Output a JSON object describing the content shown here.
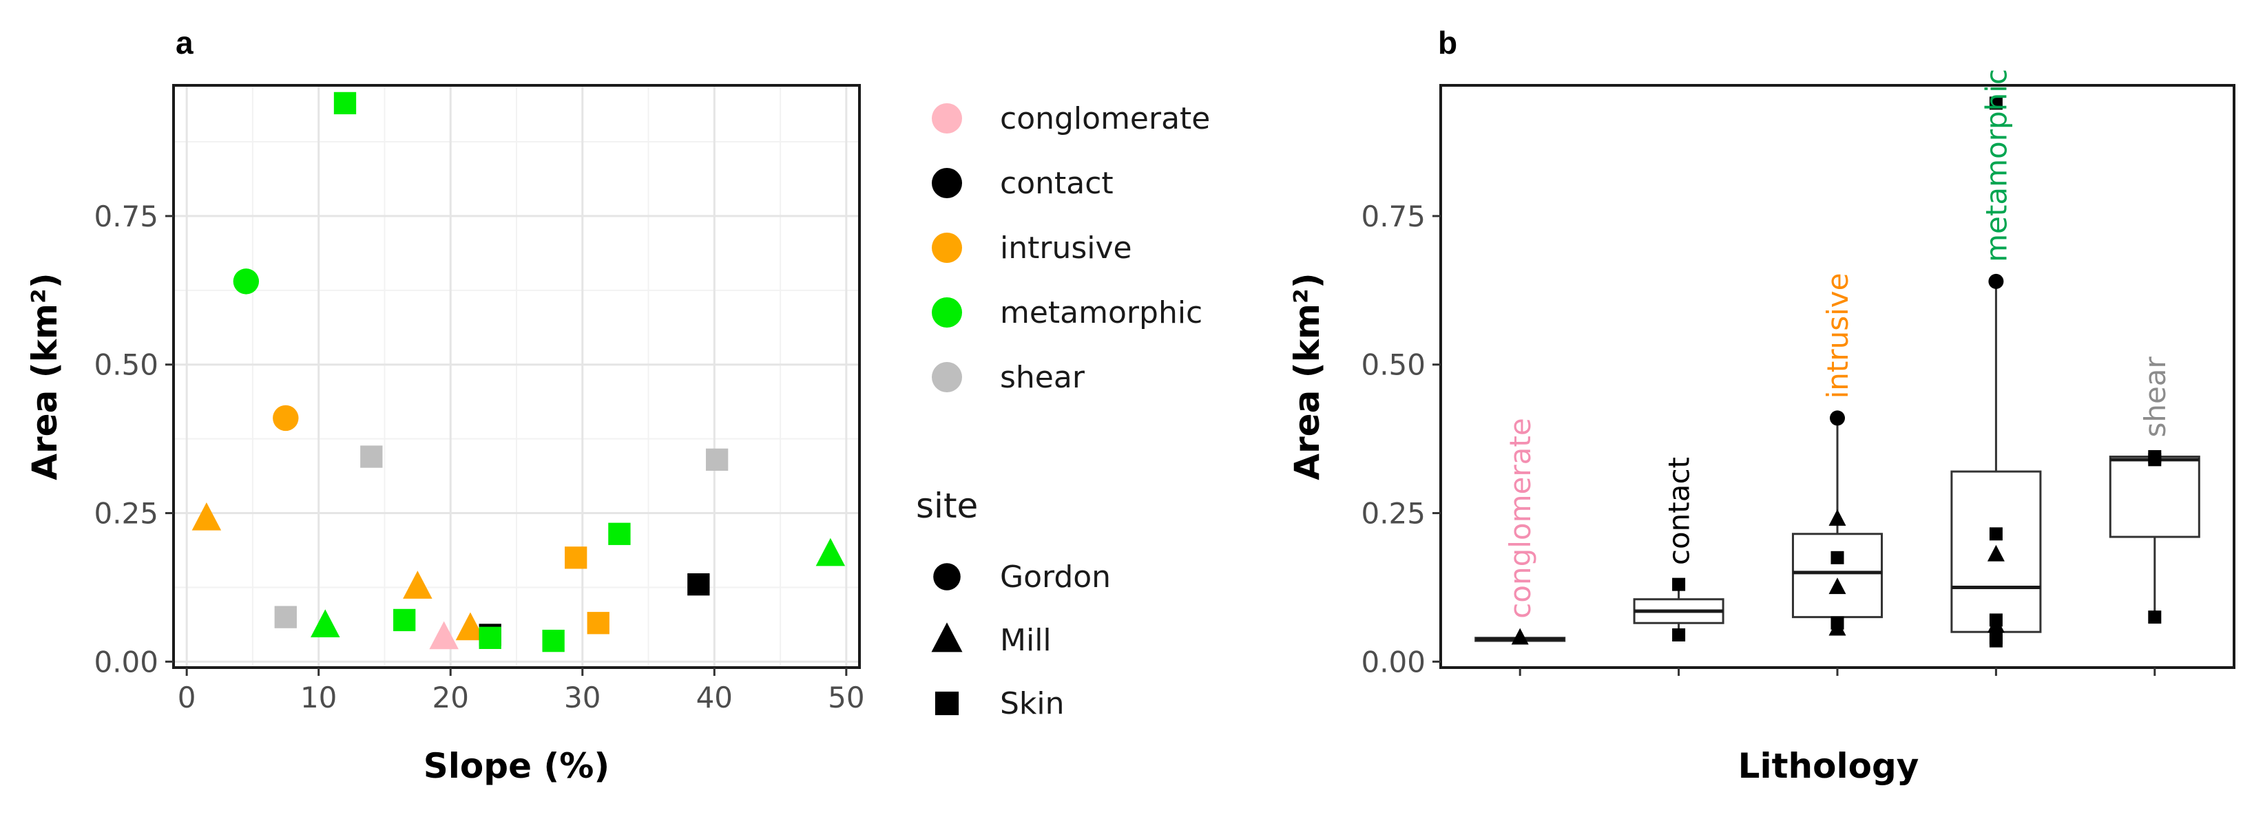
{
  "chart_data": [
    {
      "panel": "a",
      "type": "scatter",
      "xlabel": "Slope (%)",
      "ylabel": "Area (km²)",
      "xlim": [
        -1,
        51
      ],
      "ylim": [
        -0.01,
        0.97
      ],
      "xticks": [
        0,
        10,
        20,
        30,
        40,
        50
      ],
      "yticks": [
        0.0,
        0.25,
        0.5,
        0.75
      ],
      "ytick_labels": [
        "0.00",
        "0.25",
        "0.50",
        "0.75"
      ],
      "grid": true,
      "legend": {
        "color_title": "",
        "colors": [
          {
            "label": "conglomerate",
            "color": "#ffb6c1"
          },
          {
            "label": "contact",
            "color": "#000000"
          },
          {
            "label": "intrusive",
            "color": "#ffa500"
          },
          {
            "label": "metamorphic",
            "color": "#00ee00"
          },
          {
            "label": "shear",
            "color": "#bebebe"
          }
        ],
        "shape_title": "site",
        "shapes": [
          {
            "label": "Gordon",
            "shape": "circle"
          },
          {
            "label": "Mill",
            "shape": "triangle"
          },
          {
            "label": "Skin",
            "shape": "square"
          }
        ],
        "placement": "right"
      },
      "points": [
        {
          "x": 12.0,
          "y": 0.94,
          "lith": "metamorphic",
          "site": "Skin"
        },
        {
          "x": 4.5,
          "y": 0.64,
          "lith": "metamorphic",
          "site": "Gordon"
        },
        {
          "x": 7.5,
          "y": 0.41,
          "lith": "intrusive",
          "site": "Gordon"
        },
        {
          "x": 14.0,
          "y": 0.345,
          "lith": "shear",
          "site": "Skin"
        },
        {
          "x": 40.2,
          "y": 0.34,
          "lith": "shear",
          "site": "Skin"
        },
        {
          "x": 1.5,
          "y": 0.24,
          "lith": "intrusive",
          "site": "Mill"
        },
        {
          "x": 32.8,
          "y": 0.215,
          "lith": "metamorphic",
          "site": "Skin"
        },
        {
          "x": 48.8,
          "y": 0.18,
          "lith": "metamorphic",
          "site": "Mill"
        },
        {
          "x": 29.5,
          "y": 0.175,
          "lith": "intrusive",
          "site": "Skin"
        },
        {
          "x": 38.8,
          "y": 0.13,
          "lith": "contact",
          "site": "Skin"
        },
        {
          "x": 17.5,
          "y": 0.125,
          "lith": "intrusive",
          "site": "Mill"
        },
        {
          "x": 7.5,
          "y": 0.075,
          "lith": "shear",
          "site": "Skin"
        },
        {
          "x": 16.5,
          "y": 0.07,
          "lith": "metamorphic",
          "site": "Skin"
        },
        {
          "x": 10.5,
          "y": 0.06,
          "lith": "metamorphic",
          "site": "Mill"
        },
        {
          "x": 31.2,
          "y": 0.065,
          "lith": "intrusive",
          "site": "Skin"
        },
        {
          "x": 21.5,
          "y": 0.055,
          "lith": "intrusive",
          "site": "Mill"
        },
        {
          "x": 23.0,
          "y": 0.045,
          "lith": "contact",
          "site": "Skin"
        },
        {
          "x": 19.5,
          "y": 0.04,
          "lith": "conglomerate",
          "site": "Mill"
        },
        {
          "x": 23.0,
          "y": 0.04,
          "lith": "metamorphic",
          "site": "Skin"
        },
        {
          "x": 27.8,
          "y": 0.035,
          "lith": "metamorphic",
          "site": "Skin"
        }
      ]
    },
    {
      "panel": "b",
      "type": "box",
      "xlabel": "Lithology",
      "ylabel": "Area (km²)",
      "ylim": [
        -0.01,
        0.97
      ],
      "yticks": [
        0.0,
        0.25,
        0.5,
        0.75
      ],
      "ytick_labels": [
        "0.00",
        "0.25",
        "0.50",
        "0.75"
      ],
      "categories": [
        "conglomerate",
        "contact",
        "intrusive",
        "metamorphic",
        "shear"
      ],
      "category_colors": [
        "#f48fb1",
        "#000000",
        "#ff8c00",
        "#00a550",
        "#8c8c8c"
      ],
      "boxes": [
        {
          "q1": 0.035,
          "median": 0.038,
          "q3": 0.04,
          "whisker_low": 0.035,
          "whisker_high": 0.04
        },
        {
          "q1": 0.065,
          "median": 0.085,
          "q3": 0.105,
          "whisker_low": 0.045,
          "whisker_high": 0.13
        },
        {
          "q1": 0.075,
          "median": 0.15,
          "q3": 0.215,
          "whisker_low": 0.055,
          "whisker_high": 0.41
        },
        {
          "q1": 0.05,
          "median": 0.125,
          "q3": 0.32,
          "whisker_low": 0.035,
          "whisker_high": 0.64
        },
        {
          "q1": 0.21,
          "median": 0.34,
          "q3": 0.345,
          "whisker_low": 0.075,
          "whisker_high": 0.345
        }
      ],
      "points": [
        {
          "cat": 0,
          "y": 0.04,
          "site": "Mill"
        },
        {
          "cat": 1,
          "y": 0.13,
          "site": "Skin"
        },
        {
          "cat": 1,
          "y": 0.045,
          "site": "Skin"
        },
        {
          "cat": 2,
          "y": 0.41,
          "site": "Gordon"
        },
        {
          "cat": 2,
          "y": 0.24,
          "site": "Mill"
        },
        {
          "cat": 2,
          "y": 0.175,
          "site": "Skin"
        },
        {
          "cat": 2,
          "y": 0.125,
          "site": "Mill"
        },
        {
          "cat": 2,
          "y": 0.065,
          "site": "Skin"
        },
        {
          "cat": 2,
          "y": 0.055,
          "site": "Mill"
        },
        {
          "cat": 3,
          "y": 0.94,
          "site": "Skin"
        },
        {
          "cat": 3,
          "y": 0.64,
          "site": "Gordon"
        },
        {
          "cat": 3,
          "y": 0.215,
          "site": "Skin"
        },
        {
          "cat": 3,
          "y": 0.18,
          "site": "Mill"
        },
        {
          "cat": 3,
          "y": 0.07,
          "site": "Skin"
        },
        {
          "cat": 3,
          "y": 0.06,
          "site": "Mill"
        },
        {
          "cat": 3,
          "y": 0.04,
          "site": "Skin"
        },
        {
          "cat": 3,
          "y": 0.035,
          "site": "Skin"
        },
        {
          "cat": 4,
          "y": 0.345,
          "site": "Skin"
        },
        {
          "cat": 4,
          "y": 0.34,
          "site": "Skin"
        },
        {
          "cat": 4,
          "y": 0.075,
          "site": "Skin"
        }
      ]
    }
  ]
}
